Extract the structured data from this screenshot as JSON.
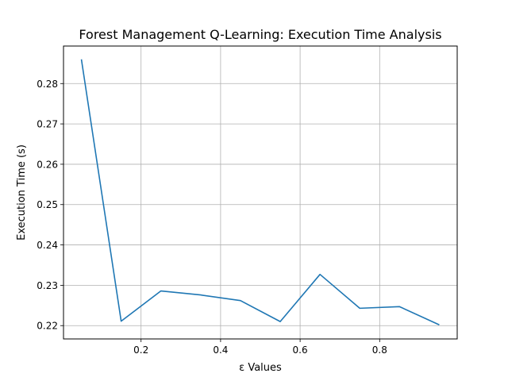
{
  "chart_data": {
    "type": "line",
    "title": "Forest Management Q-Learning: Execution Time Analysis",
    "xlabel": "ε Values",
    "ylabel": "Execution Time (s)",
    "xlim": [
      0.005,
      0.995
    ],
    "ylim": [
      0.2167,
      0.2893
    ],
    "xticks": [
      0.2,
      0.4,
      0.6,
      0.8
    ],
    "xtick_labels": [
      "0.2",
      "0.4",
      "0.6",
      "0.8"
    ],
    "yticks": [
      0.22,
      0.23,
      0.24,
      0.25,
      0.26,
      0.27,
      0.28
    ],
    "ytick_labels": [
      "0.22",
      "0.23",
      "0.24",
      "0.25",
      "0.26",
      "0.27",
      "0.28"
    ],
    "grid": true,
    "series": [
      {
        "color": "#1f77b4",
        "x": [
          0.05,
          0.15,
          0.25,
          0.35,
          0.45,
          0.55,
          0.65,
          0.75,
          0.85,
          0.95
        ],
        "y": [
          0.286,
          0.2211,
          0.2286,
          0.2276,
          0.2262,
          0.221,
          0.2327,
          0.2243,
          0.2247,
          0.2202
        ]
      }
    ]
  }
}
